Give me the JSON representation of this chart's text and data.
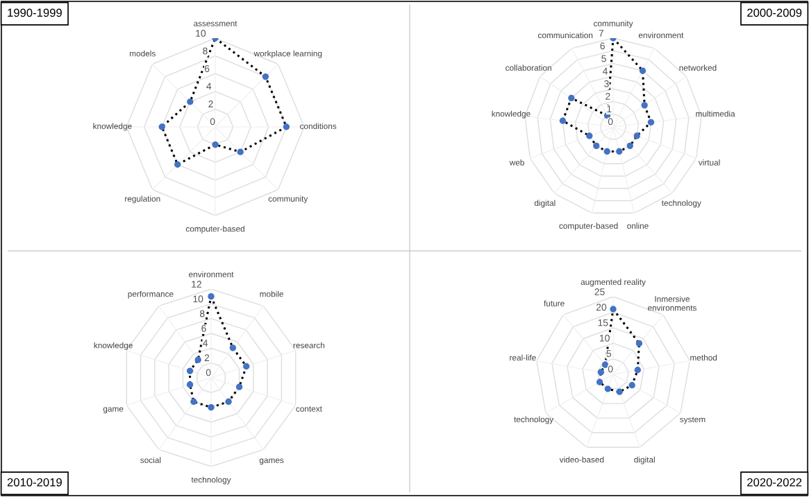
{
  "chart_data": [
    {
      "type": "radar",
      "title": "1990-1999",
      "categories": [
        "assessment",
        "workplace learning",
        "conditions",
        "community",
        "computer-based",
        "regulation",
        "knowledge",
        "models"
      ],
      "ylim": [
        0,
        10
      ],
      "yticks": [
        0,
        2,
        4,
        6,
        8,
        10
      ],
      "grid": true,
      "marker": "circle",
      "line_style": "dotted",
      "series": [
        {
          "color": "#000000",
          "colors": [
            "#4472c4",
            "#4472c4",
            "#4472c4",
            "#4472c4",
            "#4472c4",
            "#4472c4",
            "#4472c4",
            "#4472c4"
          ],
          "values": [
            10,
            8,
            8,
            4,
            2,
            6,
            6,
            4
          ]
        }
      ]
    },
    {
      "type": "radar",
      "title": "2000-2009",
      "categories": [
        "community",
        "environment",
        "networked",
        "multimedia",
        "virtual",
        "technology",
        "online",
        "computer-based",
        "digital",
        "web",
        "knowledge",
        "collaboration",
        "communication"
      ],
      "ylim": [
        0,
        7
      ],
      "yticks": [
        0,
        1,
        2,
        3,
        4,
        5,
        6,
        7
      ],
      "grid": true,
      "marker": "circle",
      "line_style": "dotted",
      "series": [
        {
          "color": "#000000",
          "colors": [
            "#4472c4",
            "#4472c4",
            "#4472c4",
            "#4472c4",
            "#4472c4",
            "#4472c4",
            "#4472c4",
            "#4472c4",
            "#4472c4",
            "#4472c4",
            "#4472c4",
            "#4472c4",
            "#4472c4"
          ],
          "values": [
            7,
            5,
            3,
            3,
            2,
            2,
            2,
            2,
            2,
            2,
            4,
            4,
            1
          ]
        }
      ]
    },
    {
      "type": "radar",
      "title": "2010-2019",
      "categories": [
        "environment",
        "mobile",
        "research",
        "context",
        "games",
        "technology",
        "social",
        "game",
        "knowledge",
        "performance"
      ],
      "ylim": [
        0,
        12
      ],
      "yticks": [
        0,
        2,
        4,
        6,
        8,
        10,
        12
      ],
      "grid": true,
      "marker": "circle",
      "line_style": "dotted",
      "series": [
        {
          "color": "#000000",
          "colors": [
            "#4472c4",
            "#4472c4",
            "#4472c4",
            "#4472c4",
            "#4472c4",
            "#4472c4",
            "#4472c4",
            "#4472c4",
            "#4472c4",
            "#4472c4"
          ],
          "values": [
            11,
            5,
            5,
            4,
            4,
            4,
            4,
            3,
            3,
            3
          ]
        }
      ]
    },
    {
      "type": "radar",
      "title": "2020-2022",
      "categories": [
        "augmented reality",
        "Inmersive\nenvironments",
        "method",
        "system",
        "digital",
        "video-based",
        "technology",
        "real-life",
        "future"
      ],
      "ylim": [
        0,
        25
      ],
      "yticks": [
        0,
        5,
        10,
        15,
        20,
        25
      ],
      "grid": true,
      "marker": "circle",
      "line_style": "dotted",
      "series": [
        {
          "color": "#000000",
          "colors": [
            "#4472c4",
            "#4472c4",
            "#4472c4",
            "#4472c4",
            "#4472c4",
            "#4472c4",
            "#4472c4",
            "#4472c4",
            "#4472c4"
          ],
          "values": [
            21,
            13,
            8,
            7,
            6,
            5,
            5,
            4,
            4
          ]
        }
      ]
    }
  ]
}
